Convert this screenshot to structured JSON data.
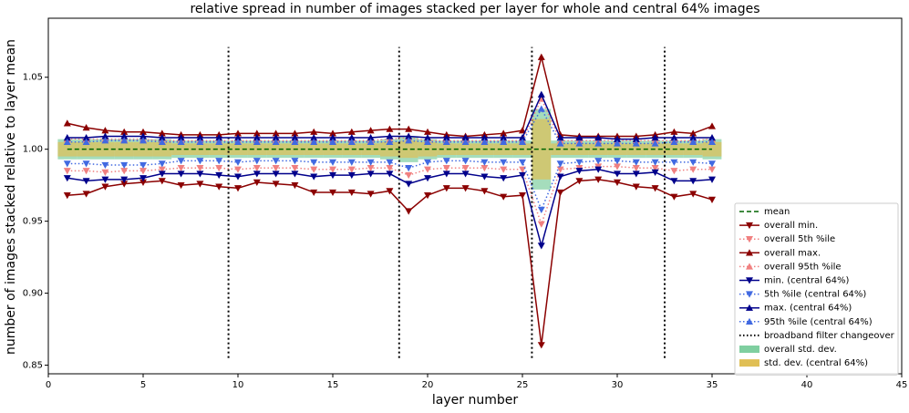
{
  "chart_data": {
    "type": "line",
    "title": "relative spread in number of images stacked per layer for whole and central 64% images",
    "xlabel": "layer number",
    "ylabel": "number of images stacked relative to layer mean",
    "xlim": [
      0,
      45
    ],
    "xticks": [
      0,
      5,
      10,
      15,
      20,
      25,
      30,
      35,
      40,
      45
    ],
    "ylim": [
      0.844,
      1.091
    ],
    "yticks": [
      0.85,
      {
        "value": 0.9,
        "label": "0.90"
      },
      0.95,
      {
        "value": 1.0,
        "label": "1.00"
      },
      1.05
    ],
    "legend": "lower right",
    "x": [
      1,
      2,
      3,
      4,
      5,
      6,
      7,
      8,
      9,
      10,
      11,
      12,
      13,
      14,
      15,
      16,
      17,
      18,
      19,
      20,
      21,
      22,
      23,
      24,
      25,
      26,
      27,
      28,
      29,
      30,
      31,
      32,
      33,
      34,
      35
    ],
    "series": [
      {
        "name": "mean",
        "color": "#006400",
        "style": "dashed",
        "marker": "none",
        "values": [
          1,
          1,
          1,
          1,
          1,
          1,
          1,
          1,
          1,
          1,
          1,
          1,
          1,
          1,
          1,
          1,
          1,
          1,
          1,
          1,
          1,
          1,
          1,
          1,
          1,
          1,
          1,
          1,
          1,
          1,
          1,
          1,
          1,
          1,
          1
        ]
      },
      {
        "name": "overall min.",
        "color": "#8b0000",
        "style": "solid",
        "marker": "down",
        "values": [
          0.968,
          0.969,
          0.974,
          0.976,
          0.977,
          0.978,
          0.975,
          0.976,
          0.974,
          0.973,
          0.977,
          0.976,
          0.975,
          0.97,
          0.97,
          0.97,
          0.969,
          0.971,
          0.957,
          0.968,
          0.973,
          0.973,
          0.971,
          0.967,
          0.968,
          0.864,
          0.97,
          0.978,
          0.979,
          0.977,
          0.974,
          0.973,
          0.967,
          0.969,
          0.965
        ]
      },
      {
        "name": "overall 5th %ile",
        "color": "#f08080",
        "style": "dotted",
        "marker": "down",
        "values": [
          0.985,
          0.985,
          0.984,
          0.985,
          0.985,
          0.986,
          0.987,
          0.987,
          0.987,
          0.986,
          0.987,
          0.987,
          0.987,
          0.986,
          0.986,
          0.986,
          0.987,
          0.987,
          0.982,
          0.986,
          0.987,
          0.987,
          0.987,
          0.986,
          0.986,
          0.948,
          0.986,
          0.987,
          0.988,
          0.988,
          0.987,
          0.987,
          0.985,
          0.986,
          0.986
        ]
      },
      {
        "name": "overall max.",
        "color": "#8b0000",
        "style": "solid",
        "marker": "up",
        "values": [
          1.018,
          1.015,
          1.013,
          1.012,
          1.012,
          1.011,
          1.01,
          1.01,
          1.01,
          1.011,
          1.011,
          1.011,
          1.011,
          1.012,
          1.011,
          1.012,
          1.013,
          1.014,
          1.014,
          1.012,
          1.01,
          1.009,
          1.01,
          1.011,
          1.013,
          1.064,
          1.01,
          1.009,
          1.009,
          1.009,
          1.009,
          1.01,
          1.012,
          1.011,
          1.016
        ]
      },
      {
        "name": "overall 95th %ile",
        "color": "#f08080",
        "style": "dotted",
        "marker": "up",
        "values": [
          1.007,
          1.007,
          1.007,
          1.007,
          1.007,
          1.006,
          1.006,
          1.006,
          1.006,
          1.006,
          1.006,
          1.006,
          1.006,
          1.006,
          1.006,
          1.006,
          1.006,
          1.007,
          1.008,
          1.006,
          1.006,
          1.006,
          1.006,
          1.006,
          1.006,
          1.035,
          1.006,
          1.006,
          1.006,
          1.006,
          1.006,
          1.006,
          1.006,
          1.006,
          1.007
        ]
      },
      {
        "name": "min. (central 64%)",
        "color": "#00008b",
        "style": "solid",
        "marker": "down",
        "values": [
          0.98,
          0.978,
          0.979,
          0.979,
          0.98,
          0.983,
          0.983,
          0.983,
          0.982,
          0.981,
          0.983,
          0.983,
          0.983,
          0.981,
          0.982,
          0.982,
          0.983,
          0.983,
          0.976,
          0.98,
          0.983,
          0.983,
          0.981,
          0.98,
          0.982,
          0.933,
          0.981,
          0.985,
          0.986,
          0.983,
          0.983,
          0.984,
          0.978,
          0.978,
          0.979
        ]
      },
      {
        "name": "5th %ile (central 64%)",
        "color": "#4169e1",
        "style": "dotted",
        "marker": "down",
        "values": [
          0.99,
          0.99,
          0.989,
          0.989,
          0.989,
          0.99,
          0.992,
          0.992,
          0.992,
          0.991,
          0.992,
          0.992,
          0.992,
          0.991,
          0.991,
          0.991,
          0.991,
          0.991,
          0.987,
          0.991,
          0.992,
          0.992,
          0.991,
          0.991,
          0.991,
          0.958,
          0.99,
          0.991,
          0.992,
          0.992,
          0.991,
          0.991,
          0.991,
          0.991,
          0.99
        ]
      },
      {
        "name": "max. (central 64%)",
        "color": "#00008b",
        "style": "solid",
        "marker": "up",
        "values": [
          1.008,
          1.008,
          1.009,
          1.009,
          1.009,
          1.008,
          1.008,
          1.008,
          1.008,
          1.008,
          1.008,
          1.008,
          1.008,
          1.008,
          1.008,
          1.008,
          1.008,
          1.009,
          1.009,
          1.008,
          1.008,
          1.008,
          1.008,
          1.008,
          1.008,
          1.038,
          1.008,
          1.008,
          1.008,
          1.007,
          1.007,
          1.008,
          1.008,
          1.008,
          1.008
        ]
      },
      {
        "name": "95th %ile (central 64%)",
        "color": "#4169e1",
        "style": "dotted",
        "marker": "up",
        "values": [
          1.005,
          1.005,
          1.006,
          1.006,
          1.006,
          1.005,
          1.005,
          1.005,
          1.005,
          1.005,
          1.005,
          1.005,
          1.005,
          1.005,
          1.005,
          1.005,
          1.005,
          1.005,
          1.006,
          1.005,
          1.005,
          1.005,
          1.005,
          1.005,
          1.005,
          1.028,
          1.004,
          1.004,
          1.004,
          1.004,
          1.004,
          1.004,
          1.005,
          1.005,
          1.005
        ]
      }
    ],
    "changeover": {
      "name": "broadband filter changeover",
      "color": "#000000",
      "x": [
        9.5,
        18.5,
        25.5,
        32.5
      ],
      "ymin": 0.855,
      "ymax": 1.071
    },
    "bands": [
      {
        "name": "overall std. dev.",
        "color": "#7fcfa0",
        "values": [
          0.007,
          0.007,
          0.007,
          0.007,
          0.007,
          0.007,
          0.006,
          0.006,
          0.006,
          0.006,
          0.006,
          0.006,
          0.006,
          0.006,
          0.006,
          0.006,
          0.006,
          0.007,
          0.009,
          0.007,
          0.006,
          0.006,
          0.006,
          0.006,
          0.006,
          0.028,
          0.006,
          0.006,
          0.006,
          0.006,
          0.006,
          0.006,
          0.006,
          0.006,
          0.007
        ]
      },
      {
        "name": "std. dev. (central 64%)",
        "color": "#e0bf55",
        "values": [
          0.005,
          0.005,
          0.005,
          0.005,
          0.005,
          0.005,
          0.004,
          0.004,
          0.004,
          0.004,
          0.004,
          0.004,
          0.004,
          0.004,
          0.004,
          0.004,
          0.004,
          0.005,
          0.006,
          0.005,
          0.004,
          0.004,
          0.004,
          0.004,
          0.004,
          0.021,
          0.004,
          0.004,
          0.004,
          0.004,
          0.004,
          0.004,
          0.004,
          0.004,
          0.005
        ]
      }
    ]
  }
}
